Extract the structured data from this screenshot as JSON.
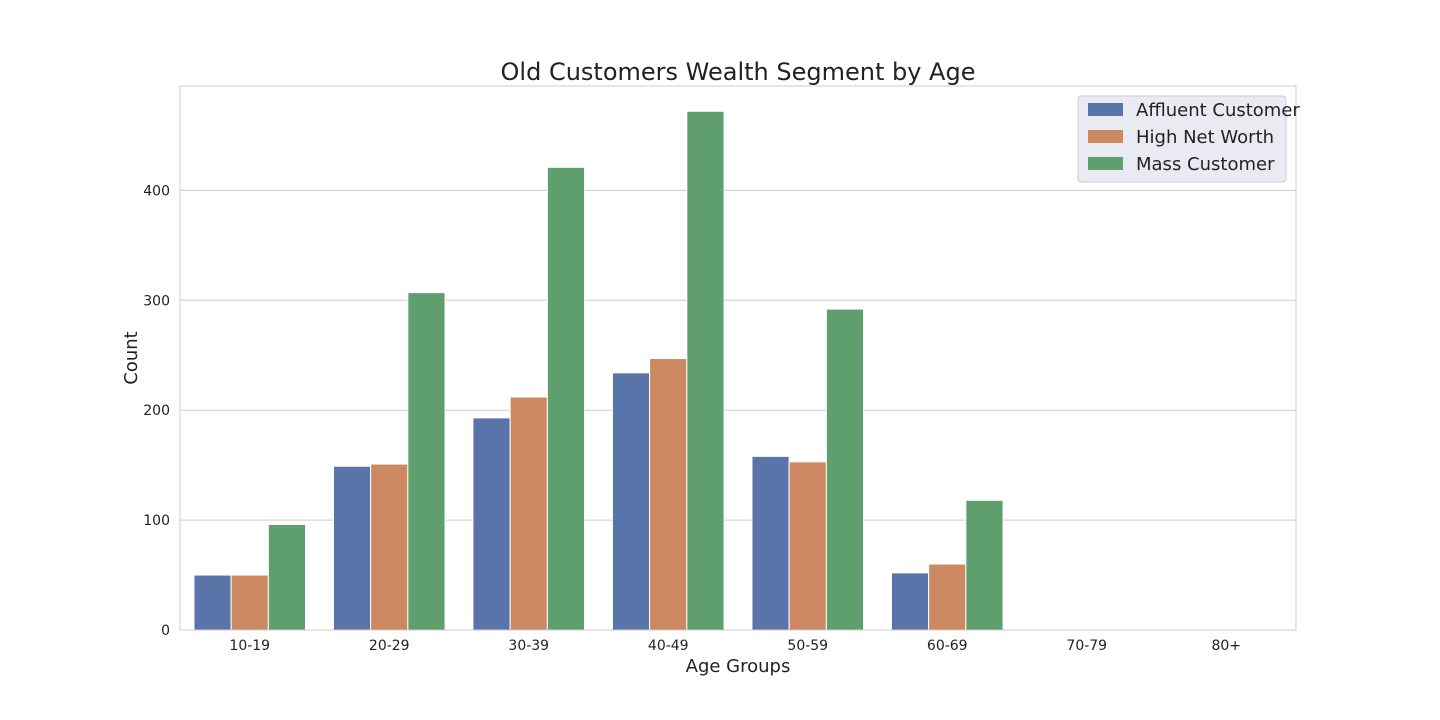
{
  "chart_data": {
    "type": "bar",
    "title": "Old Customers Wealth Segment by Age",
    "xlabel": "Age Groups",
    "ylabel": "Count",
    "categories": [
      "10-19",
      "20-29",
      "30-39",
      "40-49",
      "50-59",
      "60-69",
      "70-79",
      "80+"
    ],
    "ylim": [
      0,
      495
    ],
    "yticks": [
      0,
      100,
      200,
      300,
      400
    ],
    "grid": "y-only",
    "legend_position": "top-right",
    "series": [
      {
        "name": "Affluent Customer",
        "color": "#5874a8",
        "values": [
          50,
          149,
          193,
          234,
          158,
          52,
          0,
          0
        ]
      },
      {
        "name": "High Net Worth",
        "color": "#cc8860",
        "values": [
          50,
          151,
          212,
          247,
          153,
          60,
          0,
          0
        ]
      },
      {
        "name": "Mass Customer",
        "color": "#5e9f6d",
        "values": [
          96,
          307,
          421,
          472,
          292,
          118,
          0,
          0
        ]
      }
    ]
  }
}
